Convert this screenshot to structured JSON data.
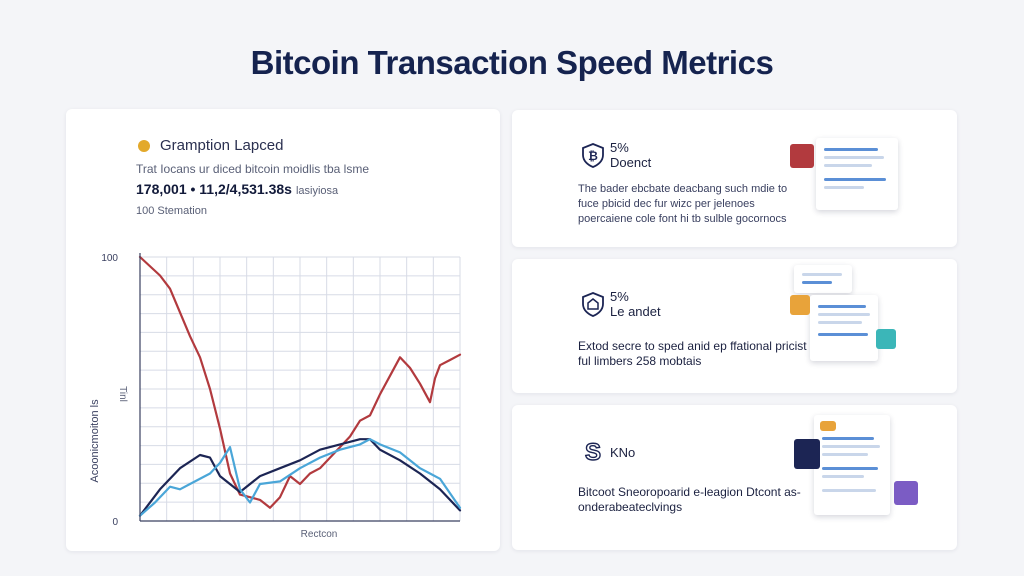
{
  "title": "Bitcoin Transaction Speed Metrics",
  "main_card": {
    "legend_label": "Gramption Lapced",
    "description": "Trat Iocans ur diced bitcoin moidlis tba lsme",
    "stats_value": "178,001 • 11,2/4,531.38s",
    "stats_unit": "lasiyiosa",
    "sub_label": "100 Stemation"
  },
  "chart_data": {
    "type": "line",
    "ylabel": "Acoonicmoiton ls",
    "ylabel2": "Tinl",
    "xlabel": "Rectcon",
    "y_ticks": [
      "100",
      "0"
    ],
    "ylim": [
      0,
      100
    ],
    "xlim": [
      0,
      32
    ],
    "grid": true,
    "colors": {
      "red": "#b23a3e",
      "navy": "#1c2554",
      "lightblue": "#4aa6d8"
    },
    "series": [
      {
        "color": "red",
        "x": [
          0,
          2,
          3,
          5,
          6,
          7,
          8,
          9,
          10,
          11,
          12,
          13,
          14,
          15,
          16,
          17,
          18,
          20,
          21,
          22,
          23,
          24,
          25,
          26,
          27,
          28,
          29,
          29.5,
          30,
          31,
          32
        ],
        "y": [
          100,
          93,
          88,
          70,
          62,
          50,
          35,
          18,
          10,
          9,
          8,
          5,
          9,
          17,
          14,
          18,
          20,
          28,
          32,
          38,
          40,
          48,
          55,
          62,
          58,
          52,
          45,
          54,
          59,
          61,
          63
        ]
      },
      {
        "color": "navy",
        "x": [
          0,
          2,
          4,
          6,
          7,
          8,
          10,
          12,
          14,
          16,
          18,
          20,
          22,
          23,
          24,
          26,
          28,
          30,
          32
        ],
        "y": [
          2,
          12,
          20,
          25,
          24,
          17,
          11,
          17,
          20,
          23,
          27,
          29,
          31,
          31,
          27,
          23,
          18,
          12,
          4
        ]
      },
      {
        "color": "lightblue",
        "x": [
          0,
          1.5,
          3,
          4,
          5,
          7,
          8,
          9,
          10,
          11,
          12,
          14,
          16,
          18,
          20,
          22,
          23,
          24,
          26,
          28,
          29,
          30,
          32
        ],
        "y": [
          2,
          7,
          13,
          12,
          14,
          18,
          22,
          28,
          12,
          7,
          14,
          15,
          20,
          24,
          27,
          29,
          31,
          29,
          26,
          20,
          18,
          16,
          5
        ]
      }
    ]
  },
  "side_cards": [
    {
      "icon": "bitcoin-shield-icon",
      "heading_line1": "5%",
      "heading_line2": "Doenct",
      "body": "The bader ebcbate deacbang such mdie to fuce pbicid dec fur wizc per jelenoes poercaiene cole font hi tb sulble gocornocs"
    },
    {
      "icon": "shield-icon",
      "heading_line1": "5%",
      "heading_line2": "Le andet",
      "body": "Extod secre to sped anid ep ffational pricist ful limbers 258 mobtais"
    },
    {
      "icon": "dollar-icon",
      "heading_line1": "KNo",
      "heading_line2": "",
      "body": "Bitcoot Sneoropoarid e-leagion Dtcont as-onderabeateclvings"
    }
  ],
  "colors": {
    "title": "#15234f",
    "accent_red": "#b23a3e",
    "accent_orange": "#e8a33a",
    "accent_teal": "#3bb6b8",
    "accent_purple": "#7b5cc4",
    "accent_navy": "#1c2554"
  }
}
